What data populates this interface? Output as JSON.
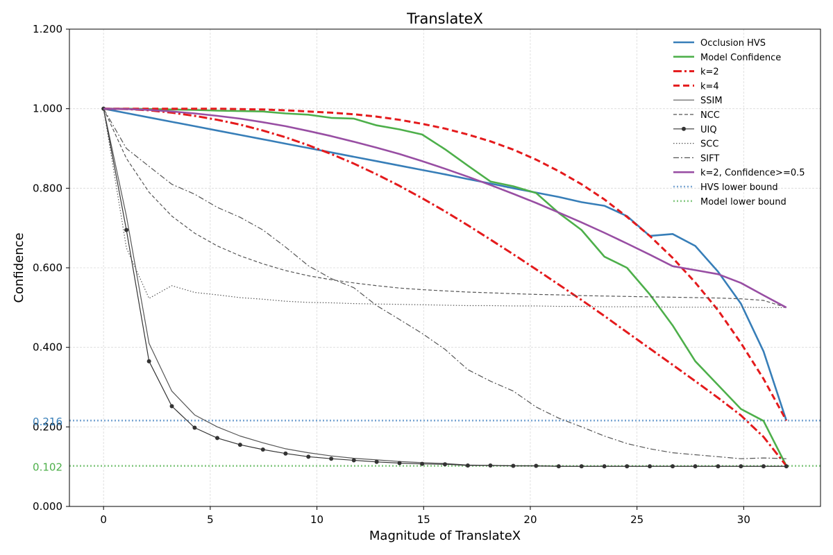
{
  "chart_data": {
    "type": "line",
    "title": "TranslateX",
    "xlabel": "Magnitude of TranslateX",
    "ylabel": "Confidence",
    "xlim": [
      -1.6,
      33.6
    ],
    "ylim": [
      0,
      1.2
    ],
    "xticks": [
      0,
      5,
      10,
      15,
      20,
      25,
      30
    ],
    "xtick_labels": [
      "0",
      "5",
      "10",
      "15",
      "20",
      "25",
      "30"
    ],
    "yticks": [
      0,
      0.2,
      0.4,
      0.6,
      0.8,
      1.0,
      1.2
    ],
    "ytick_labels": [
      "0.000",
      "0.200",
      "0.400",
      "0.600",
      "0.800",
      "1.000",
      "1.200"
    ],
    "grid": true,
    "legend_position": "top-right",
    "x": [
      0,
      1.07,
      2.13,
      3.2,
      4.27,
      5.33,
      6.4,
      7.47,
      8.53,
      9.6,
      10.67,
      11.73,
      12.8,
      13.87,
      14.93,
      16.0,
      17.07,
      18.13,
      19.2,
      20.27,
      21.33,
      22.4,
      23.47,
      24.53,
      25.6,
      26.67,
      27.73,
      28.8,
      29.87,
      30.93,
      32.0
    ],
    "series": [
      {
        "name": "Occlusion HVS",
        "color": "#377eb8",
        "style": "solid",
        "width": 2.6,
        "values": [
          1.0,
          0.989,
          0.978,
          0.967,
          0.956,
          0.945,
          0.934,
          0.923,
          0.912,
          0.901,
          0.89,
          0.879,
          0.868,
          0.857,
          0.846,
          0.835,
          0.823,
          0.812,
          0.8,
          0.789,
          0.778,
          0.765,
          0.756,
          0.73,
          0.68,
          0.685,
          0.655,
          0.59,
          0.51,
          0.39,
          0.216
        ]
      },
      {
        "name": "Model Confidence",
        "color": "#4daf4a",
        "style": "solid",
        "width": 2.6,
        "values": [
          1.0,
          1.0,
          0.999,
          0.998,
          0.997,
          0.995,
          0.994,
          0.993,
          0.988,
          0.985,
          0.977,
          0.975,
          0.958,
          0.948,
          0.935,
          0.898,
          0.857,
          0.817,
          0.805,
          0.788,
          0.738,
          0.695,
          0.628,
          0.6,
          0.533,
          0.455,
          0.365,
          0.305,
          0.245,
          0.215,
          0.102
        ]
      },
      {
        "name": "k=2",
        "color": "#e41a1c",
        "style": "dashdot",
        "width": 3,
        "values": [
          1.0,
          0.999,
          0.996,
          0.99,
          0.982,
          0.972,
          0.96,
          0.945,
          0.928,
          0.908,
          0.886,
          0.862,
          0.835,
          0.806,
          0.775,
          0.742,
          0.707,
          0.671,
          0.634,
          0.596,
          0.558,
          0.519,
          0.479,
          0.438,
          0.397,
          0.356,
          0.315,
          0.273,
          0.229,
          0.175,
          0.102
        ]
      },
      {
        "name": "k=4",
        "color": "#e41a1c",
        "style": "dashed",
        "width": 3,
        "values": [
          1.0,
          1.0,
          1.0,
          1.0,
          1.0,
          1.0,
          0.999,
          0.998,
          0.996,
          0.993,
          0.99,
          0.986,
          0.98,
          0.972,
          0.962,
          0.95,
          0.935,
          0.918,
          0.897,
          0.872,
          0.843,
          0.81,
          0.772,
          0.728,
          0.68,
          0.625,
          0.563,
          0.493,
          0.411,
          0.321,
          0.216
        ]
      },
      {
        "name": "SSIM",
        "color": "#555555",
        "style": "solid",
        "width": 1.2,
        "values": [
          1.0,
          0.73,
          0.41,
          0.29,
          0.23,
          0.2,
          0.177,
          0.16,
          0.145,
          0.135,
          0.127,
          0.121,
          0.117,
          0.113,
          0.11,
          0.108,
          0.104,
          0.103,
          0.102,
          0.102,
          0.101,
          0.101,
          0.101,
          0.101,
          0.101,
          0.101,
          0.101,
          0.101,
          0.101,
          0.101,
          0.101
        ]
      },
      {
        "name": "NCC",
        "color": "#555555",
        "style": "dashed-thin",
        "width": 1.2,
        "values": [
          1.0,
          0.875,
          0.79,
          0.73,
          0.687,
          0.655,
          0.63,
          0.61,
          0.593,
          0.58,
          0.57,
          0.562,
          0.555,
          0.549,
          0.545,
          0.542,
          0.539,
          0.537,
          0.535,
          0.533,
          0.532,
          0.53,
          0.529,
          0.528,
          0.527,
          0.526,
          0.525,
          0.524,
          0.522,
          0.518,
          0.5
        ]
      },
      {
        "name": "UIQ",
        "color": "#333333",
        "style": "solid-marker",
        "width": 1.2,
        "values": [
          1.0,
          0.695,
          0.365,
          0.252,
          0.198,
          0.172,
          0.155,
          0.143,
          0.133,
          0.125,
          0.12,
          0.116,
          0.112,
          0.109,
          0.107,
          0.106,
          0.103,
          0.103,
          0.102,
          0.102,
          0.101,
          0.101,
          0.101,
          0.101,
          0.101,
          0.101,
          0.101,
          0.101,
          0.101,
          0.101,
          0.101
        ]
      },
      {
        "name": "SCC",
        "color": "#555555",
        "style": "dotted",
        "width": 1.2,
        "values": [
          1.0,
          0.65,
          0.523,
          0.555,
          0.538,
          0.532,
          0.525,
          0.521,
          0.516,
          0.513,
          0.512,
          0.51,
          0.509,
          0.508,
          0.507,
          0.506,
          0.505,
          0.505,
          0.504,
          0.504,
          0.503,
          0.503,
          0.502,
          0.502,
          0.502,
          0.501,
          0.501,
          0.501,
          0.501,
          0.5,
          0.5
        ]
      },
      {
        "name": "SIFT",
        "color": "#555555",
        "style": "dashdot-thin",
        "width": 1.2,
        "values": [
          1.0,
          0.9,
          0.855,
          0.81,
          0.785,
          0.752,
          0.727,
          0.695,
          0.652,
          0.605,
          0.573,
          0.55,
          0.505,
          0.47,
          0.435,
          0.395,
          0.344,
          0.315,
          0.29,
          0.25,
          0.222,
          0.2,
          0.177,
          0.158,
          0.145,
          0.135,
          0.13,
          0.125,
          0.12,
          0.122,
          0.12
        ]
      },
      {
        "name": "k=2, Confidence>=0.5",
        "color": "#984ea3",
        "style": "solid",
        "width": 2.6,
        "values": [
          1.0,
          0.999,
          0.997,
          0.993,
          0.988,
          0.982,
          0.975,
          0.966,
          0.956,
          0.944,
          0.931,
          0.917,
          0.902,
          0.886,
          0.868,
          0.849,
          0.829,
          0.808,
          0.786,
          0.763,
          0.739,
          0.714,
          0.688,
          0.661,
          0.633,
          0.604,
          0.594,
          0.584,
          0.562,
          0.531,
          0.5
        ]
      },
      {
        "name": "HVS lower bound",
        "color": "#7aa6d3",
        "style": "hline-dotted",
        "width": 2.6,
        "value": 0.216
      },
      {
        "name": "Model lower bound",
        "color": "#86c983",
        "style": "hline-dotted",
        "width": 2.6,
        "value": 0.102
      }
    ],
    "hline_labels": [
      {
        "text": "0.216",
        "value": 0.216,
        "color": "#377eb8"
      },
      {
        "text": "0.102",
        "value": 0.102,
        "color": "#4daf4a"
      }
    ]
  }
}
